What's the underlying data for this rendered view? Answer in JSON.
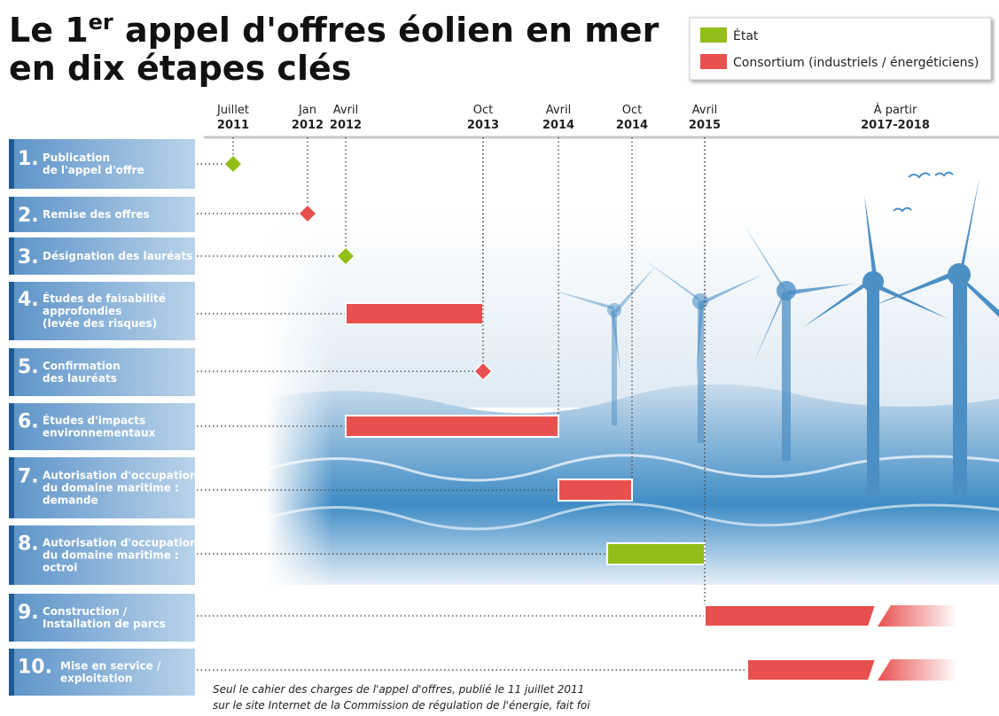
{
  "title": {
    "line1": {
      "start": "Le 1",
      "sup": "er",
      "rest": " appel d'offres éolien en mer"
    },
    "line2": "en dix étapes clés"
  },
  "legend": [
    {
      "label": "État"
    },
    {
      "label": "Consortium (industriels / énergéticiens)"
    }
  ],
  "timeline": [
    {
      "top": "Juillet",
      "bottom": "2011"
    },
    {
      "top": "Jan",
      "bottom": "2012"
    },
    {
      "top": "Avril",
      "bottom": "2012"
    },
    {
      "top": "Oct",
      "bottom": "2013"
    },
    {
      "top": "Avril",
      "bottom": "2014"
    },
    {
      "top": "Oct",
      "bottom": "2014"
    },
    {
      "top": "Avril",
      "bottom": "2015"
    },
    {
      "top": "À partir",
      "bottom": "2017-2018"
    }
  ],
  "steps": [
    {
      "number": "1.",
      "lines": [
        "Publication",
        "de l'appel d'offre"
      ]
    },
    {
      "number": "2.",
      "lines": [
        "Remise des offres"
      ]
    },
    {
      "number": "3.",
      "lines": [
        "Désignation des lauréats"
      ]
    },
    {
      "number": "4.",
      "lines": [
        "Études de faisabilité",
        "approfondies",
        "(levée des risques)"
      ]
    },
    {
      "number": "5.",
      "lines": [
        "Confirmation",
        "des lauréats"
      ]
    },
    {
      "number": "6.",
      "lines": [
        "Études d'impacts",
        "environnementaux"
      ]
    },
    {
      "number": "7.",
      "lines": [
        "Autorisation d'occupation",
        "du domaine maritime :",
        "demande"
      ]
    },
    {
      "number": "8.",
      "lines": [
        "Autorisation d'occupation",
        "du domaine maritime :",
        "octroi"
      ]
    },
    {
      "number": "9.",
      "lines": [
        "Construction /",
        "Installation de parcs"
      ]
    },
    {
      "number": "10.",
      "lines": [
        "Mise en service /",
        "exploitation"
      ]
    }
  ],
  "footnote": [
    "Seul le cahier des charges de l'appel d'offres, publié le 11 juillet 2011",
    "sur le site Internet de la Commission de régulation de l'énergie, fait foi"
  ]
}
